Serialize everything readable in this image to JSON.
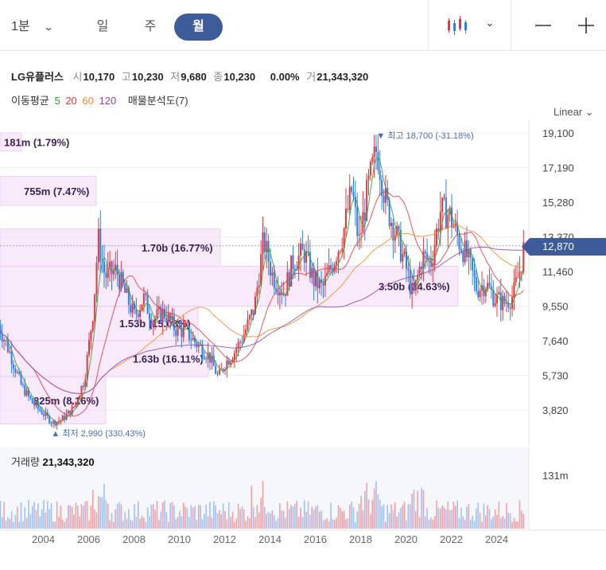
{
  "toolbar": {
    "interval_dropdown": "1분",
    "periods": [
      "일",
      "주",
      "월"
    ],
    "active_period": "월",
    "chart_type_icon": "candlestick-icon",
    "zoom_out": "zoom-out-icon",
    "zoom_in": "zoom-in-icon"
  },
  "stock": {
    "name": "LG유플러스",
    "open_label": "시",
    "open": "10,170",
    "high_label": "고",
    "high": "10,230",
    "low_label": "저",
    "low": "9,680",
    "close_label": "종",
    "close": "10,230",
    "change": "0.00%",
    "volume_label": "거",
    "volume": "21,343,320"
  },
  "moving_average": {
    "label": "이동평균",
    "periods": [
      {
        "value": "5",
        "color": "#2ca02c"
      },
      {
        "value": "20",
        "color": "#e5383b"
      },
      {
        "value": "60",
        "color": "#f28c28"
      },
      {
        "value": "120",
        "color": "#8e44ad"
      }
    ],
    "volume_profile": "매물분석도(7)"
  },
  "scale_mode": "Linear",
  "current_price": "12,870",
  "volume_panel": {
    "label": "거래량",
    "value": "21,343,320",
    "axis_max": "131m"
  },
  "chart_data": {
    "type": "candlestick",
    "y_ticks": [
      "19,100",
      "17,190",
      "15,280",
      "13,370",
      "11,460",
      "9,550",
      "7,640",
      "5,730",
      "3,820"
    ],
    "x_ticks": [
      "2004",
      "2006",
      "2008",
      "2010",
      "2012",
      "2014",
      "2016",
      "2018",
      "2020",
      "2022",
      "2024"
    ],
    "ylim": [
      2500,
      20000
    ],
    "high_marker": "최고 18,700 (-31.18%)",
    "low_marker": "최저 2,990 (330.43%)",
    "volume_profile": [
      {
        "price_range": [
          18100,
          19100
        ],
        "label": "181m (1.79%)"
      },
      {
        "price_range": [
          15100,
          16700
        ],
        "label": "755m (7.47%)"
      },
      {
        "price_range": [
          11750,
          13800
        ],
        "label": "1.70b (16.77%)"
      },
      {
        "price_range": [
          9550,
          11750
        ],
        "label": "3.50b (34.63%)"
      },
      {
        "price_range": [
          7650,
          9550
        ],
        "label": "1.53b (15.08%)"
      },
      {
        "price_range": [
          5650,
          7650
        ],
        "label": "1.63b (16.11%)"
      },
      {
        "price_range": [
          3050,
          5650
        ],
        "label": "825m (8.16%)"
      }
    ]
  }
}
